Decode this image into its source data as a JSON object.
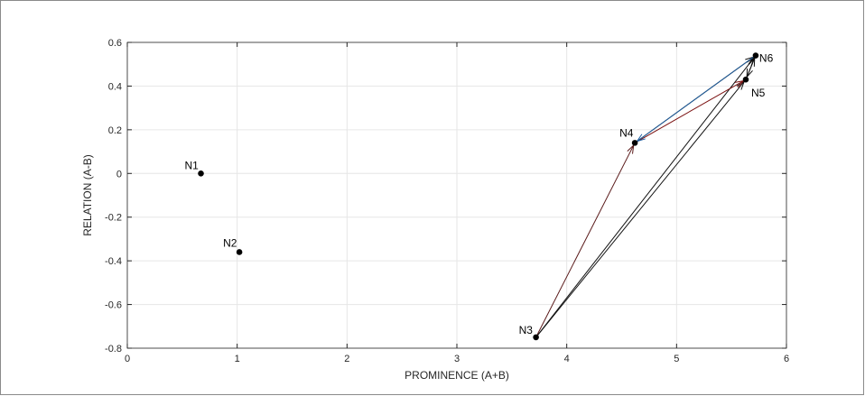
{
  "chart_data": {
    "type": "scatter",
    "title": "",
    "xlabel": "PROMINENCE (A+B)",
    "ylabel": "RELATION (A-B)",
    "xlim": [
      0,
      6
    ],
    "ylim": [
      -0.8,
      0.6
    ],
    "xticks": [
      0,
      1,
      2,
      3,
      4,
      5,
      6
    ],
    "yticks": [
      -0.8,
      -0.6,
      -0.4,
      -0.2,
      0,
      0.2,
      0.4,
      0.6
    ],
    "xtick_labels": [
      "0",
      "1",
      "2",
      "3",
      "4",
      "5",
      "6"
    ],
    "ytick_labels": [
      "-0.8",
      "-0.6",
      "-0.4",
      "-0.2",
      "0",
      "0.2",
      "0.4",
      "0.6"
    ],
    "grid": true,
    "points": [
      {
        "name": "N1",
        "x": 0.67,
        "y": 0.0
      },
      {
        "name": "N2",
        "x": 1.02,
        "y": -0.36
      },
      {
        "name": "N3",
        "x": 3.72,
        "y": -0.75
      },
      {
        "name": "N4",
        "x": 4.62,
        "y": 0.14
      },
      {
        "name": "N5",
        "x": 5.63,
        "y": 0.43
      },
      {
        "name": "N6",
        "x": 5.72,
        "y": 0.54
      }
    ],
    "arrows": [
      {
        "from": "N3",
        "to": "N4",
        "color": "#5a1a1a"
      },
      {
        "from": "N3",
        "to": "N5",
        "color": "#111111"
      },
      {
        "from": "N3",
        "to": "N6",
        "color": "#111111"
      },
      {
        "from": "N4",
        "to": "N5",
        "color": "#7a1010"
      },
      {
        "from": "N4",
        "to": "N6",
        "color": "#111111"
      },
      {
        "from": "N6",
        "to": "N4",
        "color": "#1f5fa0"
      },
      {
        "from": "N5",
        "to": "N6",
        "color": "#111111"
      },
      {
        "from": "N6",
        "to": "N5",
        "color": "#111111"
      }
    ],
    "colors": {
      "axis": "#262626",
      "grid": "#e6e6e6",
      "point": "#000000"
    }
  }
}
